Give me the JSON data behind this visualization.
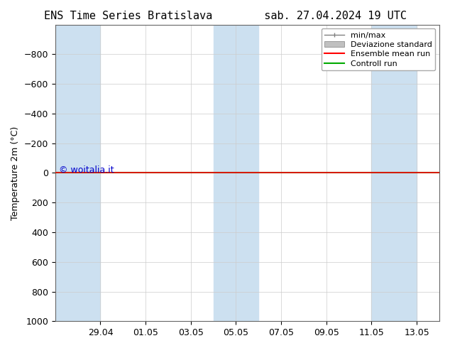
{
  "title_left": "ENS Time Series Bratislava",
  "title_right": "sab. 27.04.2024 19 UTC",
  "ylabel": "Temperature 2m (°C)",
  "ylabel_inverted": true,
  "ylim": [
    -1000,
    1000
  ],
  "yticks": [
    -800,
    -600,
    -400,
    -200,
    0,
    200,
    400,
    600,
    800,
    1000
  ],
  "xlim_start": "2024-04-27",
  "xlim_end": "2024-05-14",
  "x_tick_labels": [
    "29.04",
    "01.05",
    "03.05",
    "05.05",
    "07.05",
    "09.05",
    "11.05",
    "13.05"
  ],
  "shaded_columns": [
    "2024-04-27",
    "2024-04-28",
    "2024-05-04",
    "2024-05-05",
    "2024-05-11",
    "2024-05-12"
  ],
  "shade_color": "#cce0f0",
  "bg_color": "#ffffff",
  "plot_bg_color": "#ffffff",
  "ensemble_mean_color": "#ff0000",
  "control_run_color": "#00aa00",
  "deviazione_color": "#c0c0c0",
  "minmax_color": "#808080",
  "watermark": "© woitalia.it",
  "watermark_color": "#0000cc",
  "watermark_fontsize": 9,
  "title_fontsize": 11,
  "axis_fontsize": 9,
  "legend_fontsize": 8,
  "control_run_value": 0,
  "ensemble_mean_value": 0,
  "grid_color": "#cccccc",
  "spine_color": "#666666"
}
